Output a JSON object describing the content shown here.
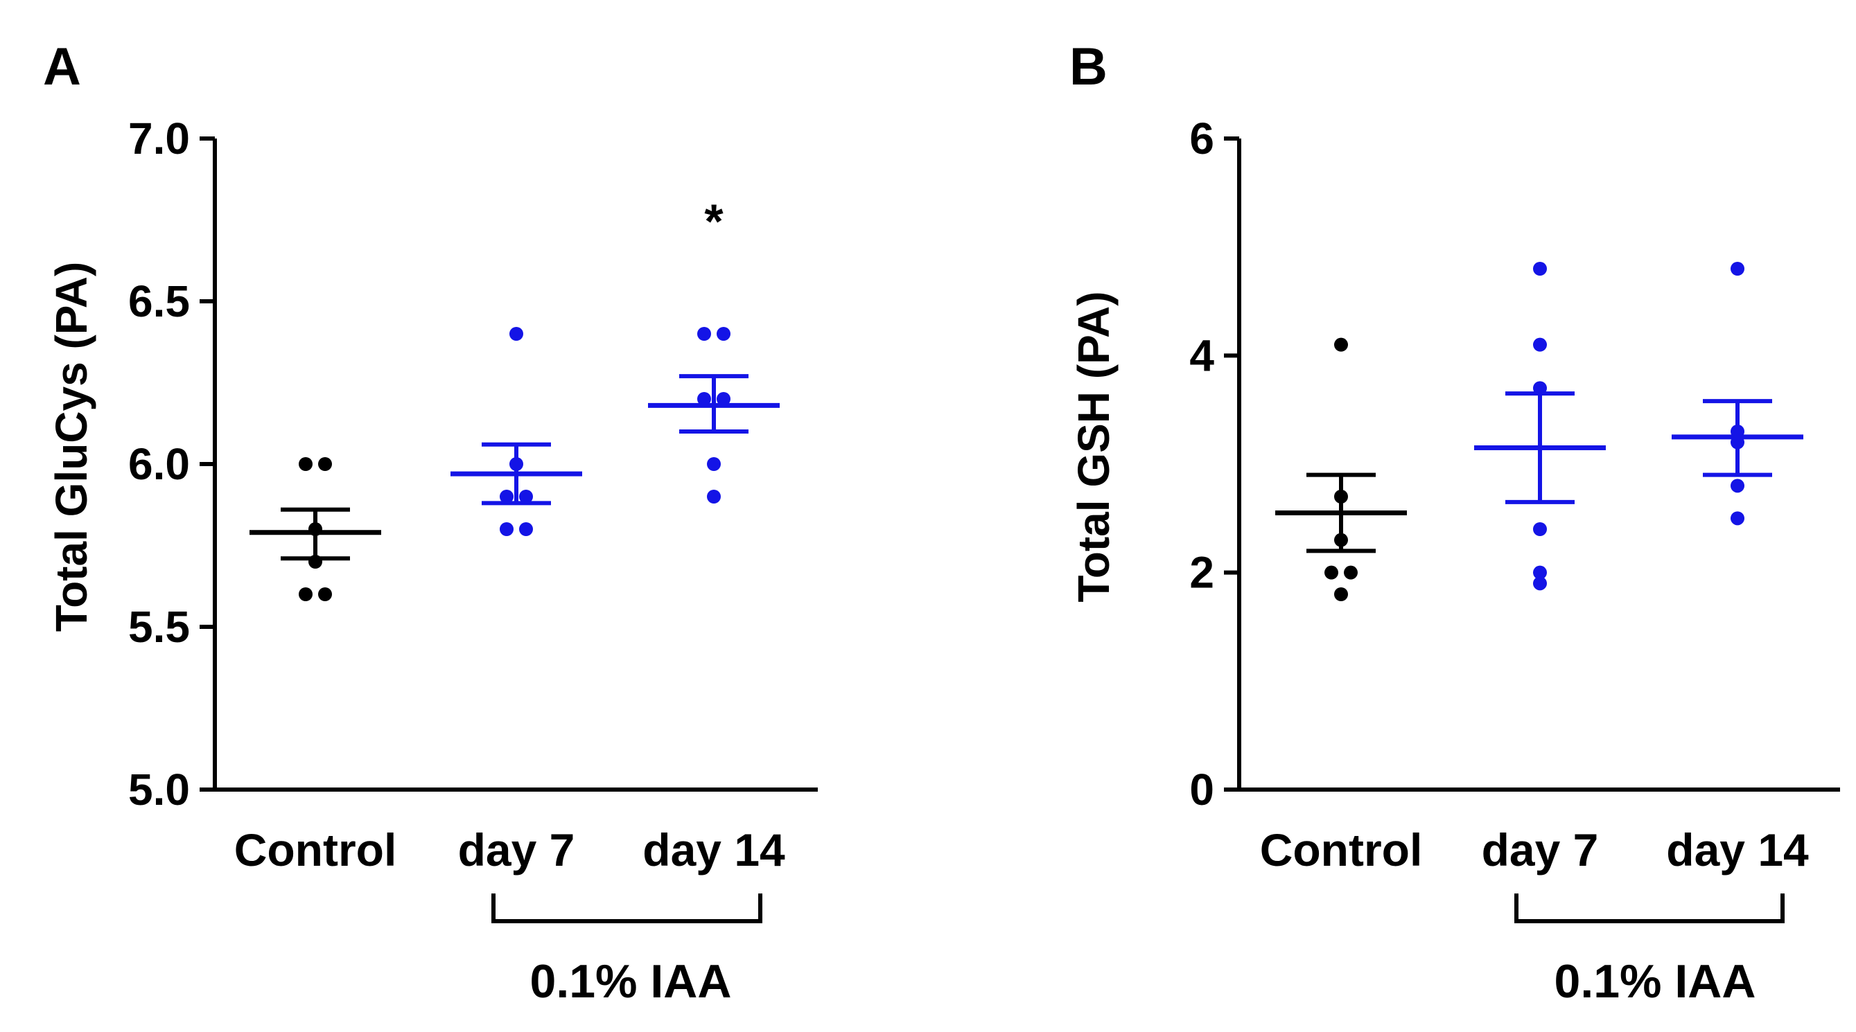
{
  "colors": {
    "control": "#000000",
    "treated": "#1414e6",
    "axis": "#000000"
  },
  "chart_data": [
    {
      "panel_label": "A",
      "type": "scatter",
      "title": "",
      "xlabel": "",
      "ylabel": "Total GluCys (PA)",
      "ylim": [
        5.0,
        7.0
      ],
      "yticks": [
        5.0,
        5.5,
        6.0,
        6.5,
        7.0
      ],
      "ytick_labels": [
        "5.0",
        "5.5",
        "6.0",
        "6.5",
        "7.0"
      ],
      "y_axis_break": true,
      "categories": [
        "Control",
        "day 7",
        "day 14"
      ],
      "group_bracket": {
        "label": "0.1% IAA",
        "from": 1,
        "to": 2
      },
      "series": [
        {
          "name": "Control",
          "color_key": "control",
          "mean": 5.79,
          "sem_low": 5.71,
          "sem_high": 5.86,
          "points": [
            6.0,
            6.0,
            5.8,
            5.7,
            5.6,
            5.6
          ]
        },
        {
          "name": "day 7",
          "color_key": "treated",
          "mean": 5.97,
          "sem_low": 5.88,
          "sem_high": 6.06,
          "points": [
            6.4,
            6.0,
            5.9,
            5.9,
            5.8,
            5.8
          ]
        },
        {
          "name": "day 14",
          "color_key": "treated",
          "mean": 6.18,
          "sem_low": 6.1,
          "sem_high": 6.27,
          "points": [
            6.4,
            6.4,
            6.2,
            6.2,
            6.0,
            5.9
          ]
        }
      ],
      "annotations": [
        {
          "category": 2,
          "text": "*",
          "y": 6.78
        }
      ]
    },
    {
      "panel_label": "B",
      "type": "scatter",
      "title": "",
      "xlabel": "",
      "ylabel": "Total GSH (PA)",
      "ylim": [
        0,
        6
      ],
      "yticks": [
        0,
        2,
        4,
        6
      ],
      "ytick_labels": [
        "0",
        "2",
        "4",
        "6"
      ],
      "y_axis_break": false,
      "categories": [
        "Control",
        "day 7",
        "day 14"
      ],
      "group_bracket": {
        "label": "0.1% IAA",
        "from": 1,
        "to": 2
      },
      "series": [
        {
          "name": "Control",
          "color_key": "control",
          "mean": 2.55,
          "sem_low": 2.2,
          "sem_high": 2.9,
          "points": [
            4.1,
            2.7,
            2.3,
            2.0,
            2.0,
            1.8
          ]
        },
        {
          "name": "day 7",
          "color_key": "treated",
          "mean": 3.15,
          "sem_low": 2.65,
          "sem_high": 3.65,
          "points": [
            4.8,
            4.1,
            3.7,
            2.4,
            2.0,
            1.9
          ]
        },
        {
          "name": "day 14",
          "color_key": "treated",
          "mean": 3.25,
          "sem_low": 2.9,
          "sem_high": 3.58,
          "points": [
            4.8,
            3.3,
            3.2,
            2.8,
            2.5
          ]
        }
      ],
      "annotations": []
    }
  ]
}
